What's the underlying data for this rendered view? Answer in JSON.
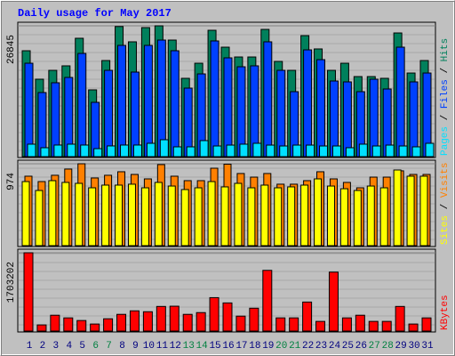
{
  "title": "Daily usage for May 2017",
  "chart_data": [
    {
      "type": "bar",
      "legend_separator": " / ",
      "ylim": [
        0,
        26845
      ],
      "yticks": [
        26845
      ],
      "series": [
        {
          "name": "Hits",
          "color": "#00805c",
          "values": [
            21730,
            15890,
            17710,
            18630,
            24290,
            13700,
            19720,
            26700,
            23560,
            26480,
            26845,
            23920,
            16070,
            19170,
            25930,
            22460,
            20450,
            20450,
            26110,
            19540,
            17710,
            24830,
            22100,
            17710,
            19170,
            16430,
            16430,
            16070,
            25380,
            17160,
            19720
          ]
        },
        {
          "name": "Files",
          "color": "#0040ff",
          "values": [
            19170,
            13150,
            15160,
            16250,
            21180,
            11140,
            17710,
            22830,
            17350,
            22830,
            23920,
            21730,
            14060,
            16980,
            23740,
            20270,
            18440,
            18630,
            23560,
            17710,
            13330,
            21910,
            19900,
            15520,
            15340,
            13330,
            15890,
            13880,
            22460,
            15340,
            17160
          ]
        },
        {
          "name": "Pages",
          "color": "#00e0ff",
          "values": [
            2560,
            1830,
            2380,
            2560,
            2380,
            1640,
            2200,
            2380,
            2380,
            2740,
            3470,
            2010,
            2010,
            3290,
            2190,
            2370,
            2560,
            2740,
            2370,
            2190,
            2370,
            2370,
            2190,
            2190,
            1830,
            2560,
            2190,
            2370,
            2190,
            2010,
            2740
          ]
        }
      ]
    },
    {
      "type": "bar",
      "legend_separator": " / ",
      "ylim": [
        0,
        974
      ],
      "yticks": [
        974
      ],
      "series": [
        {
          "name": "Visits",
          "color": "#ff8000",
          "values": [
            826,
            762,
            837,
            911,
            974,
            805,
            837,
            879,
            847,
            794,
            964,
            826,
            773,
            773,
            921,
            969,
            858,
            815,
            858,
            731,
            731,
            773,
            879,
            794,
            752,
            688,
            815,
            815,
            890,
            847,
            847
          ]
        },
        {
          "name": "Sites",
          "color": "#ffff00",
          "values": [
            762,
            656,
            773,
            752,
            741,
            688,
            720,
            720,
            731,
            688,
            752,
            709,
            667,
            688,
            762,
            699,
            741,
            688,
            720,
            688,
            699,
            720,
            794,
            709,
            677,
            656,
            709,
            688,
            900,
            826,
            826
          ]
        }
      ]
    },
    {
      "type": "bar",
      "ylim": [
        0,
        1703202
      ],
      "yticks": [
        1703202
      ],
      "categories": [
        "1",
        "2",
        "3",
        "4",
        "5",
        "6",
        "7",
        "8",
        "9",
        "10",
        "11",
        "12",
        "13",
        "14",
        "15",
        "16",
        "17",
        "18",
        "19",
        "20",
        "21",
        "22",
        "23",
        "24",
        "25",
        "26",
        "27",
        "28",
        "29",
        "30",
        "31"
      ],
      "category_colors": [
        "#00007f",
        "#00007f",
        "#00007f",
        "#00007f",
        "#00007f",
        "#008040",
        "#008040",
        "#00007f",
        "#00007f",
        "#00007f",
        "#00007f",
        "#00007f",
        "#008040",
        "#008040",
        "#00007f",
        "#00007f",
        "#00007f",
        "#00007f",
        "#00007f",
        "#008040",
        "#008040",
        "#00007f",
        "#00007f",
        "#00007f",
        "#00007f",
        "#00007f",
        "#008040",
        "#008040",
        "#00007f",
        "#00007f",
        "#00007f"
      ],
      "series": [
        {
          "name": "KBytes",
          "color": "#ff0000",
          "values": [
            1703202,
            134000,
            344500,
            287100,
            229600,
            153100,
            267900,
            363600,
            440200,
            421000,
            535800,
            541000,
            363600,
            401900,
            727200,
            612400,
            325300,
            497600,
            1320500,
            287100,
            287100,
            631500,
            210500,
            1282200,
            287100,
            344500,
            210500,
            210500,
            535800,
            153100,
            287100
          ]
        }
      ]
    }
  ]
}
